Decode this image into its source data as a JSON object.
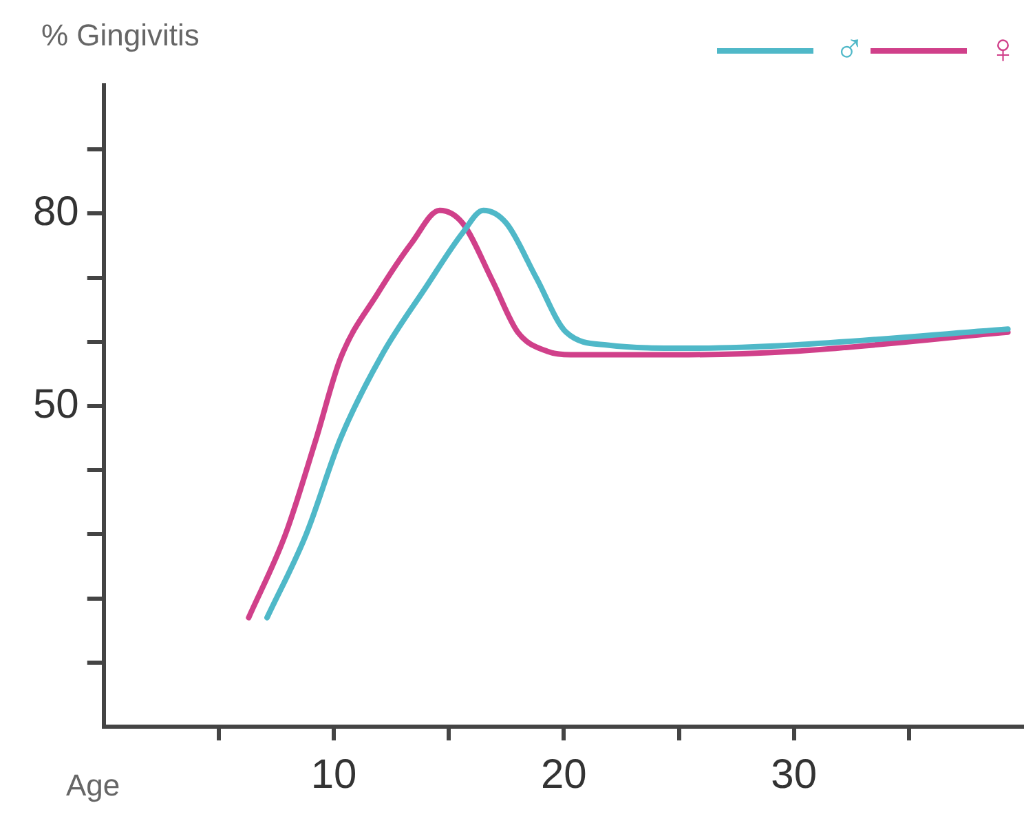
{
  "chart_data": {
    "type": "line",
    "ylabel": "% Gingivitis",
    "xlabel": "Age",
    "xlim": [
      0,
      40
    ],
    "ylim": [
      0,
      100
    ],
    "xticks": [
      {
        "value": 5,
        "label": null
      },
      10,
      {
        "value": 15,
        "label": null
      },
      20,
      {
        "value": 25,
        "label": null
      },
      30,
      {
        "value": 35,
        "label": null
      }
    ],
    "yticks": [
      {
        "value": 10,
        "label": null
      },
      {
        "value": 20,
        "label": null
      },
      {
        "value": 30,
        "label": null
      },
      {
        "value": 40,
        "label": null
      },
      50,
      {
        "value": 60,
        "label": null
      },
      {
        "value": 70,
        "label": null
      },
      80,
      {
        "value": 90,
        "label": null
      }
    ],
    "grid": false,
    "legend": "top right",
    "marker": "none",
    "line_style": "solid",
    "series": [
      {
        "name": "♂",
        "color": "#4fb8c8",
        "x": [
          7.1,
          8.8,
          10.3,
          12.1,
          14.0,
          15.6,
          16.5,
          17.5,
          18.8,
          20.1,
          21.9,
          25.4,
          29.9,
          39.3
        ],
        "values": [
          17,
          30,
          45,
          58,
          68.5,
          77,
          80.5,
          78.5,
          70,
          61.5,
          59.5,
          59,
          59.5,
          62
        ]
      },
      {
        "name": "♀",
        "color": "#d0408a",
        "x": [
          6.3,
          7.9,
          9.2,
          10.3,
          11.9,
          13.4,
          14.6,
          15.6,
          16.9,
          18.0,
          19.3,
          20.3,
          25.4,
          29.9,
          39.3
        ],
        "values": [
          17,
          30,
          44.5,
          57.5,
          67.5,
          75.5,
          80.5,
          78.5,
          69.5,
          61.5,
          58.5,
          58,
          58,
          58.5,
          61.5
        ]
      }
    ]
  }
}
